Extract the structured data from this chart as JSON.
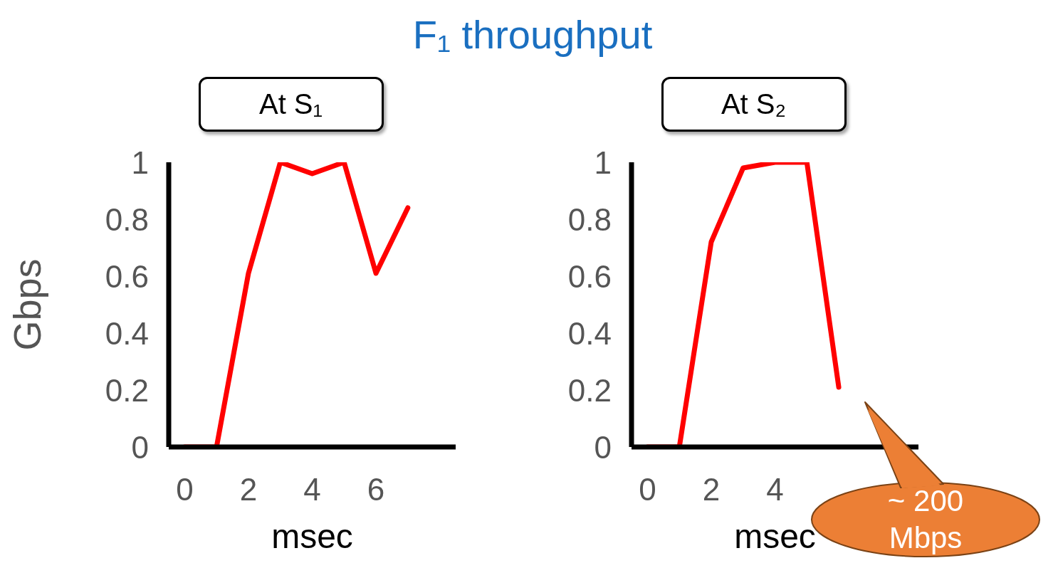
{
  "chart_data": [
    {
      "type": "line",
      "title": "At S₁",
      "xlabel": "msec",
      "ylabel": "Gbps",
      "annotations": [
        "F₁ throughput"
      ],
      "x": [
        0,
        1,
        2,
        3,
        4,
        5,
        6,
        7
      ],
      "series": [
        {
          "color": "#ff0000",
          "values": [
            0,
            0,
            0.61,
            1.0,
            0.96,
            1.0,
            0.61,
            0.84
          ]
        }
      ],
      "xlim": [
        -0.5,
        8.5
      ],
      "xticks": [
        0,
        2,
        4,
        6
      ],
      "ylim": [
        0,
        1
      ],
      "yticks": [
        0,
        0.2,
        0.4,
        0.6,
        0.8,
        1
      ],
      "grid": false,
      "legend": false,
      "marker": "none",
      "line_style": "solid"
    },
    {
      "type": "line",
      "title": "At S₂",
      "xlabel": "msec",
      "annotations": [
        "~ 200 Mbps"
      ],
      "x": [
        0,
        1,
        2,
        3,
        4,
        5,
        6
      ],
      "series": [
        {
          "color": "#ff0000",
          "values": [
            0,
            0,
            0.72,
            0.98,
            1.0,
            1.0,
            0.21
          ]
        }
      ],
      "xlim": [
        -0.5,
        8.5
      ],
      "xticks": [
        0,
        2,
        4
      ],
      "ylim": [
        0,
        1
      ],
      "yticks": [
        0,
        0.2,
        0.4,
        0.6,
        0.8,
        1
      ],
      "grid": false,
      "legend": false,
      "marker": "none",
      "line_style": "solid"
    }
  ]
}
